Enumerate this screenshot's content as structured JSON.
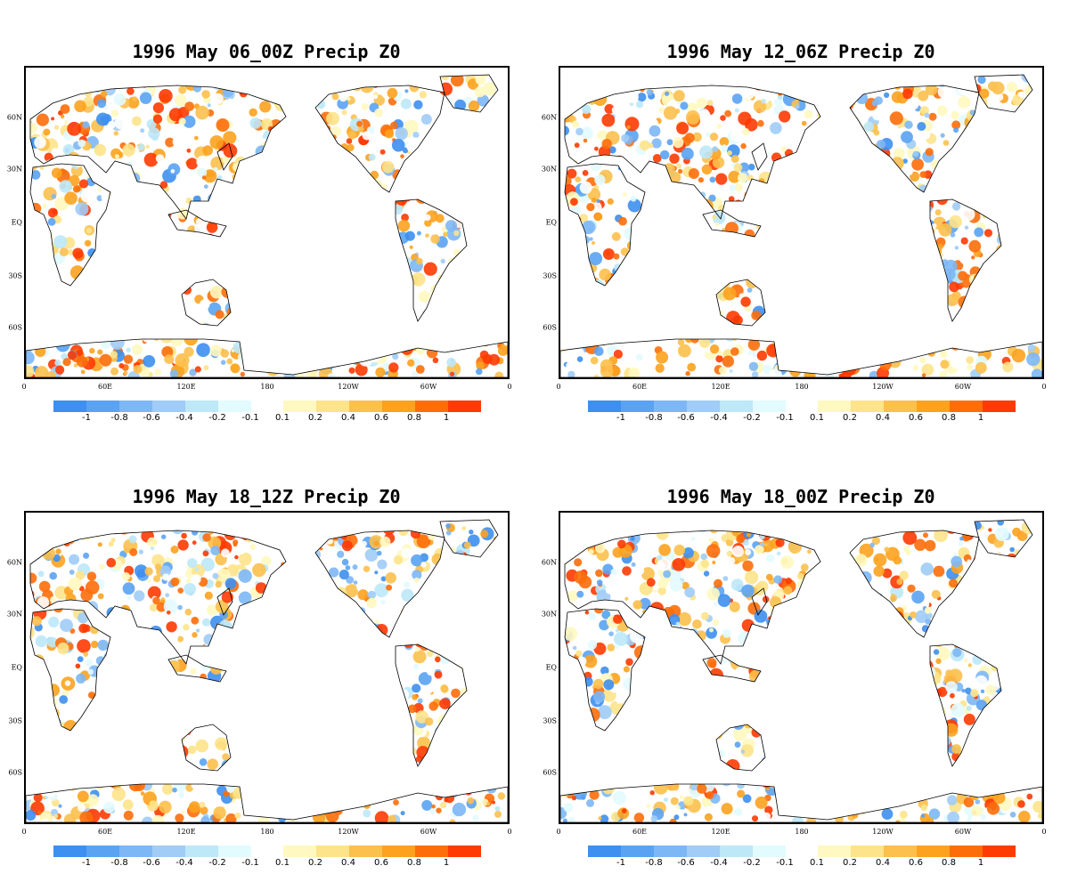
{
  "panels": [
    {
      "title": "1996 May 06_00Z Precip Z0",
      "seed": 11
    },
    {
      "title": "1996 May 12_06Z Precip Z0",
      "seed": 23
    },
    {
      "title": "1996 May 18_12Z Precip Z0",
      "seed": 37
    },
    {
      "title": "1996 May 18_00Z Precip Z0",
      "seed": 53
    }
  ],
  "lat_labels": [
    "60N",
    "30N",
    "EQ",
    "30S",
    "60S"
  ],
  "lon_labels": [
    "0",
    "60E",
    "120E",
    "180",
    "120W",
    "60W",
    "0"
  ],
  "colorbar": {
    "tick_labels": [
      "-1",
      "-0.8",
      "-0.6",
      "-0.4",
      "-0.2",
      "-0.1",
      "0.1",
      "0.2",
      "0.4",
      "0.6",
      "0.8",
      "1"
    ],
    "negative_colors": [
      "#3d8ff0",
      "#5aa3f3",
      "#7db7f5",
      "#a0ccf7",
      "#bde8f8",
      "#e2fbff"
    ],
    "positive_colors": [
      "#fff8c0",
      "#fde38a",
      "#fcc04c",
      "#fca21e",
      "#fd6e0a",
      "#ff3a02"
    ]
  }
}
